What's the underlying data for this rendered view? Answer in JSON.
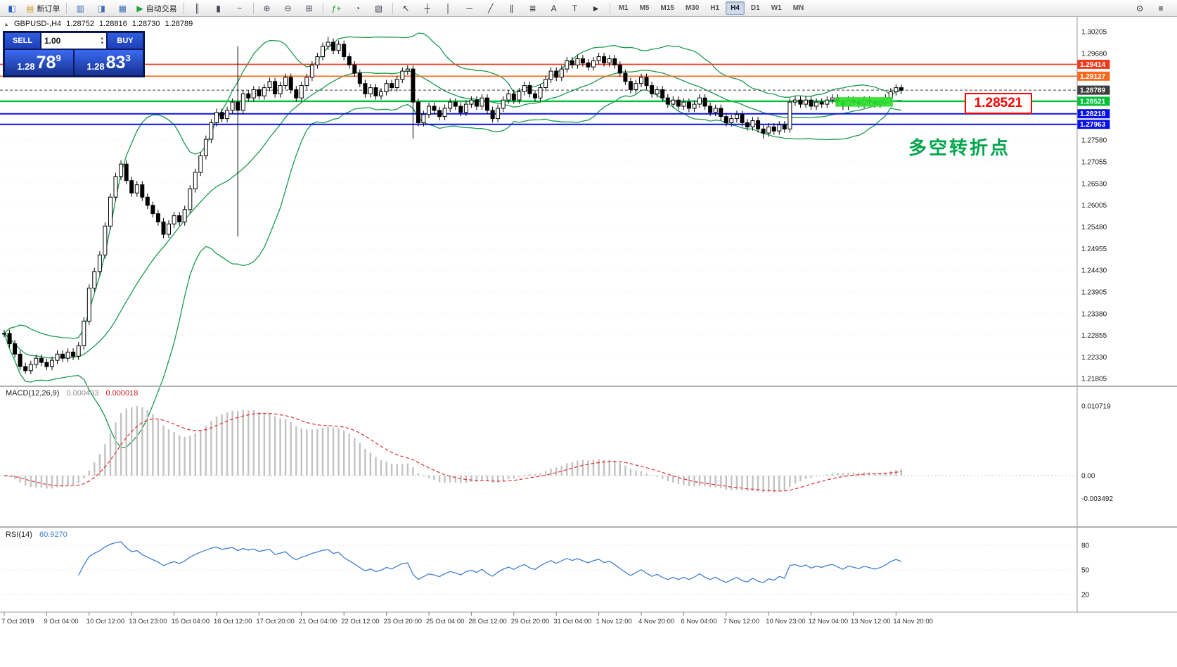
{
  "toolbar": {
    "buttons": [
      {
        "name": "app-logo",
        "glyph": "◧",
        "color": "#2b63c6"
      },
      {
        "name": "new-order",
        "glyph": "▤",
        "color": "#d89b2a",
        "label": "新订单"
      },
      {
        "sep": true
      },
      {
        "name": "market-watch",
        "glyph": "▥",
        "color": "#3f6fb5"
      },
      {
        "name": "data-window",
        "glyph": "◨",
        "color": "#3f6fb5"
      },
      {
        "name": "navigator",
        "glyph": "▦",
        "color": "#3f6fb5"
      },
      {
        "name": "autotrading",
        "glyph": "▶",
        "color": "#1fa337",
        "label": "自动交易"
      },
      {
        "sep": true
      },
      {
        "name": "bar-chart",
        "glyph": "║",
        "color": "#444455"
      },
      {
        "name": "candlestick-chart",
        "glyph": "▮",
        "color": "#444455"
      },
      {
        "name": "line-chart",
        "glyph": "~",
        "color": "#444455"
      },
      {
        "sep": true
      },
      {
        "name": "zoom-in",
        "glyph": "⊕",
        "color": "#444455"
      },
      {
        "name": "zoom-out",
        "glyph": "⊖",
        "color": "#444455"
      },
      {
        "name": "tile-windows",
        "glyph": "⊞",
        "color": "#444455"
      },
      {
        "sep": true
      },
      {
        "name": "indicators",
        "glyph": "ƒ+",
        "color": "#1d9e33"
      },
      {
        "name": "periods",
        "glyph": "◔",
        "color": "#444455"
      },
      {
        "name": "templates",
        "glyph": "▧",
        "color": "#444455"
      },
      {
        "sep": true
      },
      {
        "name": "cursor",
        "glyph": "↖",
        "color": "#333333"
      },
      {
        "name": "crosshair",
        "glyph": "┼",
        "color": "#333333"
      },
      {
        "name": "vertical-line",
        "glyph": "│",
        "color": "#333333"
      },
      {
        "name": "horizontal-line",
        "glyph": "─",
        "color": "#333333"
      },
      {
        "name": "trendline",
        "glyph": "╱",
        "color": "#333333"
      },
      {
        "name": "equidistant-channel",
        "glyph": "∥",
        "color": "#333333"
      },
      {
        "name": "fibonacci",
        "glyph": "≣",
        "color": "#333333"
      },
      {
        "name": "text",
        "glyph": "A",
        "color": "#333333"
      },
      {
        "name": "text-label",
        "glyph": "T",
        "color": "#333333"
      },
      {
        "name": "arrow-objects",
        "glyph": "►",
        "color": "#333333"
      }
    ],
    "timeframes": [
      {
        "label": "M1"
      },
      {
        "label": "M5"
      },
      {
        "label": "M15"
      },
      {
        "label": "M30"
      },
      {
        "label": "H1"
      },
      {
        "label": "H4",
        "active": true
      },
      {
        "label": "D1"
      },
      {
        "label": "W1"
      },
      {
        "label": "MN"
      }
    ],
    "right_buttons": [
      {
        "name": "search",
        "glyph": "⊙"
      },
      {
        "name": "quick-menu",
        "glyph": "≡"
      }
    ]
  },
  "info_line": {
    "collapse_icon": "▲",
    "symbol": "GBPUSD-,H4",
    "open": "1.28752",
    "high": "1.28816",
    "low": "1.28730",
    "close": "1.28789"
  },
  "trade_panel": {
    "sell_label": "SELL",
    "buy_label": "BUY",
    "volume": "1.00",
    "sell_price_main": "1.28",
    "sell_price_big": "78",
    "sell_price_sup": "9",
    "buy_price_main": "1.28",
    "buy_price_big": "83",
    "buy_price_sup": "3"
  },
  "annotations": {
    "price_box": {
      "text": "1.28521",
      "color": "#ff0000"
    },
    "pivot_label": {
      "text": "多空转折点",
      "color": "#00a44c"
    }
  },
  "chart_data": {
    "type": "candlestick",
    "symbol": "GBPUSD-",
    "period": "H4",
    "y_axis": {
      "top": 1.30205,
      "step": 0.00525,
      "count": 17
    },
    "x_axis_labels": [
      "7 Oct 2019",
      "9 Oct 04:00",
      "10 Oct 12:00",
      "13 Oct 23:00",
      "15 Oct 04:00",
      "16 Oct 12:00",
      "17 Oct 20:00",
      "21 Oct 04:00",
      "22 Oct 12:00",
      "23 Oct 20:00",
      "25 Oct 04:00",
      "28 Oct 12:00",
      "29 Oct 20:00",
      "31 Oct 04:00",
      "1 Nov 12:00",
      "4 Nov 20:00",
      "6 Nov 04:00",
      "7 Nov 12:00",
      "10 Nov 23:00",
      "12 Nov 04:00",
      "13 Nov 12:00",
      "14 Nov 20:00"
    ],
    "h_lines": [
      {
        "price": 1.29414,
        "label": "1.29414",
        "color": "#f43a1c",
        "width": 1.6
      },
      {
        "price": 1.29127,
        "label": "1.29127",
        "color": "#fa6a1e",
        "width": 1.6
      },
      {
        "price": 1.28789,
        "label": "1.28789",
        "color": "#3c3c3c",
        "width": 1,
        "dash": true
      },
      {
        "price": 1.28521,
        "label": "1.28521",
        "color": "#00c03a",
        "width": 2.4
      },
      {
        "price": 1.28218,
        "label": "1.28218",
        "color": "#0a10e8",
        "width": 2
      },
      {
        "price": 1.27963,
        "label": "1.27963",
        "color": "#0a10e8",
        "width": 2
      }
    ],
    "bollinger": {
      "period": 20,
      "deviation": 2,
      "color": "#1a9a4f"
    },
    "candles": {
      "wick": 0.0009,
      "closes": [
        1.229,
        1.2265,
        1.224,
        1.221,
        1.22,
        1.2215,
        1.223,
        1.222,
        1.221,
        1.2225,
        1.224,
        1.223,
        1.2245,
        1.2235,
        1.226,
        1.232,
        1.24,
        1.244,
        1.248,
        1.255,
        1.262,
        1.267,
        1.27,
        1.266,
        1.263,
        1.265,
        1.262,
        1.26,
        1.258,
        1.256,
        1.253,
        1.2555,
        1.2575,
        1.256,
        1.259,
        1.264,
        1.268,
        1.272,
        1.276,
        1.28,
        1.2825,
        1.281,
        1.283,
        1.285,
        1.283,
        1.287,
        1.286,
        1.288,
        1.2865,
        1.2885,
        1.29,
        1.287,
        1.289,
        1.291,
        1.288,
        1.286,
        1.289,
        1.291,
        1.294,
        1.296,
        1.2985,
        1.2995,
        1.2975,
        1.299,
        1.296,
        1.294,
        1.292,
        1.2895,
        1.287,
        1.2885,
        1.2865,
        1.2875,
        1.2895,
        1.2885,
        1.2905,
        1.2925,
        1.293,
        1.285,
        1.28,
        1.282,
        1.284,
        1.283,
        1.2815,
        1.2835,
        1.285,
        1.284,
        1.2825,
        1.2845,
        1.2855,
        1.284,
        1.286,
        1.283,
        1.281,
        1.2835,
        1.2855,
        1.287,
        1.2855,
        1.2875,
        1.289,
        1.287,
        1.286,
        1.2885,
        1.2905,
        1.2925,
        1.291,
        1.293,
        1.295,
        1.294,
        1.2955,
        1.2945,
        1.2935,
        1.295,
        1.296,
        1.2945,
        1.2955,
        1.294,
        1.292,
        1.29,
        1.288,
        1.2895,
        1.291,
        1.289,
        1.287,
        1.288,
        1.286,
        1.2845,
        1.2855,
        1.284,
        1.285,
        1.2835,
        1.2845,
        1.286,
        1.284,
        1.2825,
        1.2835,
        1.2815,
        1.28,
        1.281,
        1.282,
        1.28,
        1.279,
        1.2805,
        1.2785,
        1.2775,
        1.279,
        1.278,
        1.2795,
        1.2785,
        1.285,
        1.2855,
        1.2845,
        1.2855,
        1.284,
        1.285,
        1.2845,
        1.2855,
        1.286,
        1.285,
        1.284,
        1.2855,
        1.285,
        1.2845,
        1.2855,
        1.285,
        1.2845,
        1.285,
        1.286,
        1.2875,
        1.2885,
        1.28789
      ],
      "specials": {
        "4": {
          "l": 1.2193
        },
        "44": {
          "h": 1.2985,
          "l": 1.2525
        },
        "61": {
          "h": 1.3008
        },
        "77": {
          "l": 1.2762
        },
        "143": {
          "l": 1.2762
        },
        "169": {
          "h": 1.2892
        }
      }
    },
    "highlight": {
      "from_index": 157,
      "to_index": 167,
      "price_low": 1.2839,
      "price_high": 1.2862,
      "color": "#2fe02f"
    },
    "macd": {
      "name": "MACD(12,26,9)",
      "value1": "0.000493",
      "value2": "0.000018",
      "fast": 12,
      "slow": 26,
      "signal": 9,
      "axis_labels": [
        {
          "text": "0.010719",
          "value": 0.010719
        },
        {
          "text": "0.00",
          "value": 0
        },
        {
          "text": "-0.003492",
          "value": -0.003492
        }
      ],
      "histogram_color": "#c2c2c2",
      "signal_color": "#e03030"
    },
    "rsi": {
      "name": "RSI(14)",
      "value": "60.9270",
      "period": 14,
      "levels": [
        80,
        50,
        20
      ],
      "color": "#3f7fd4"
    }
  }
}
